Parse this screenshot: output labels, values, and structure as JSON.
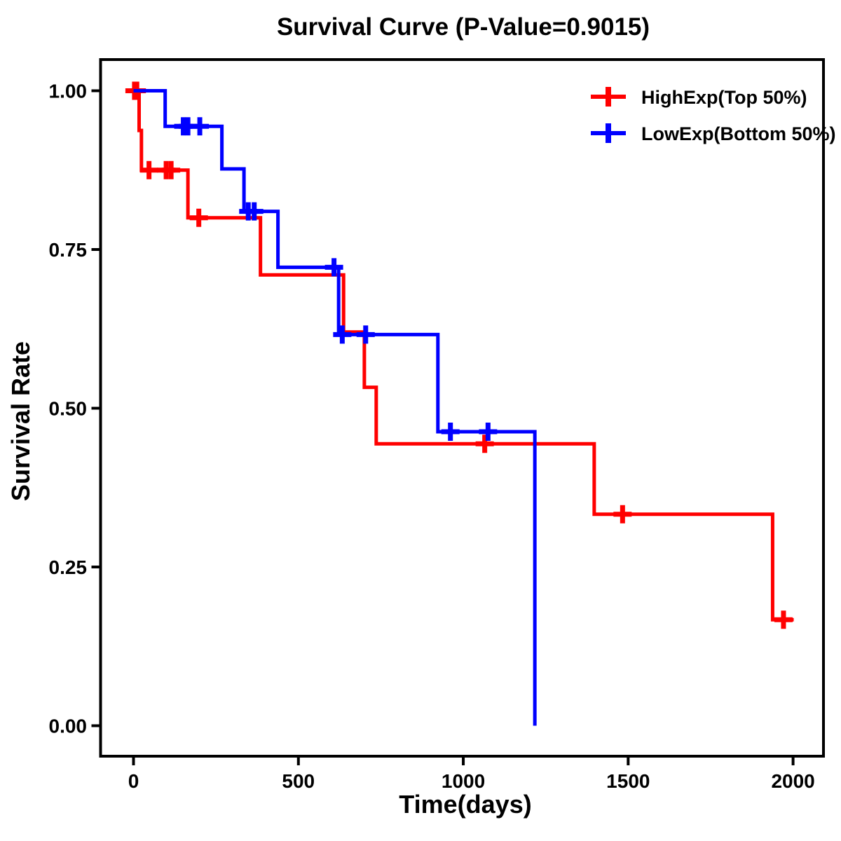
{
  "chart_data": {
    "type": "line",
    "subtype": "kaplan-meier-step-curve",
    "title": "Survival Curve (P-Value=0.9015)",
    "p_value": "0.9015",
    "xlabel": "Time(days)",
    "ylabel": "Survival Rate",
    "x_ticks": [
      0,
      500,
      1000,
      1500,
      2000
    ],
    "y_tick_labels": [
      "0.00",
      "0.25",
      "0.50",
      "0.75",
      "1.00"
    ],
    "y_tick_values": [
      0.0,
      0.25,
      0.5,
      0.75,
      1.0
    ],
    "xlim": [
      -100,
      2090
    ],
    "ylim": [
      -0.05,
      1.05
    ],
    "grid": false,
    "legend_position": "top-right",
    "frame_color": "#000000",
    "series": [
      {
        "name": "HighExp(Top 50%)",
        "color": "#FF0000",
        "start": [
          0,
          1.0
        ],
        "steps": [
          [
            17,
            0.9375
          ],
          [
            24,
            0.875
          ],
          [
            165,
            0.8
          ],
          [
            385,
            0.71
          ],
          [
            637,
            0.62
          ],
          [
            700,
            0.533
          ],
          [
            736,
            0.444
          ],
          [
            1397,
            0.333
          ],
          [
            1938,
            0.167
          ]
        ],
        "end_time": 2002,
        "censor_marks": [
          [
            3,
            1.0
          ],
          [
            10,
            1.0
          ],
          [
            47,
            0.875
          ],
          [
            99,
            0.875
          ],
          [
            114,
            0.875
          ],
          [
            198,
            0.8
          ],
          [
            1065,
            0.444
          ],
          [
            1483,
            0.333
          ],
          [
            1971,
            0.167
          ]
        ]
      },
      {
        "name": "LowExp(Bottom 50%)",
        "color": "#0000FF",
        "start": [
          0,
          1.0
        ],
        "steps": [
          [
            96,
            0.944
          ],
          [
            268,
            0.877
          ],
          [
            335,
            0.81
          ],
          [
            438,
            0.722
          ],
          [
            622,
            0.616
          ],
          [
            923,
            0.463
          ],
          [
            1217,
            0.0
          ]
        ],
        "end_time": 1217,
        "censor_marks": [
          [
            151,
            0.944
          ],
          [
            165,
            0.944
          ],
          [
            201,
            0.944
          ],
          [
            348,
            0.81
          ],
          [
            366,
            0.81
          ],
          [
            608,
            0.722
          ],
          [
            633,
            0.616
          ],
          [
            704,
            0.616
          ],
          [
            961,
            0.463
          ],
          [
            1075,
            0.463
          ]
        ]
      }
    ]
  }
}
